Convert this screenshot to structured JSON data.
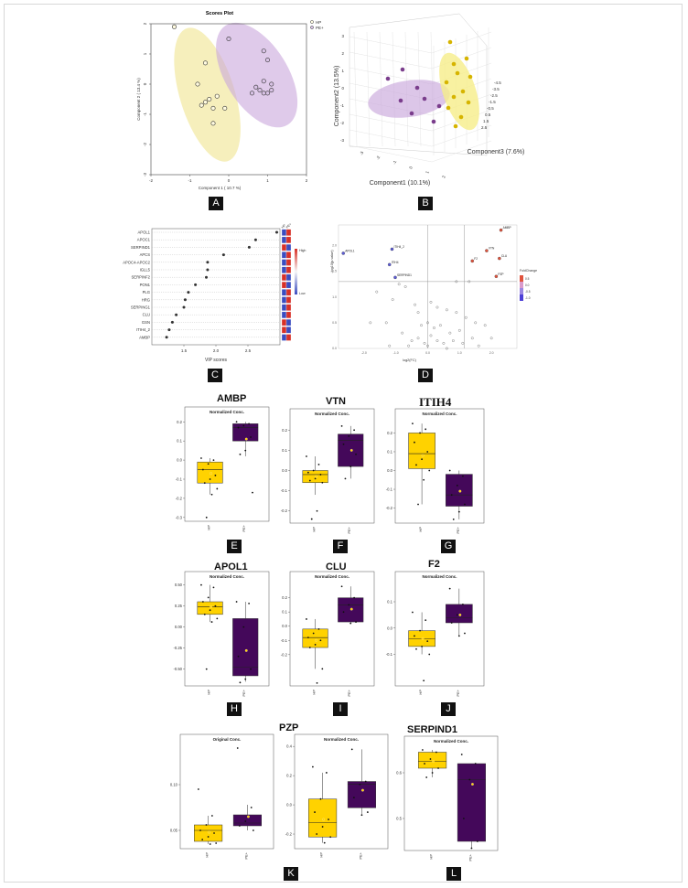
{
  "labels": {
    "A": "A",
    "B": "B",
    "C": "C",
    "D": "D",
    "E": "E",
    "F": "F",
    "G": "G",
    "H": "H",
    "I": "I",
    "J": "J",
    "K": "K",
    "L": "L"
  },
  "colors": {
    "hp": "#ffd200",
    "pe": "#44085a",
    "hp_ellipse": "#f3eaa6",
    "pe_ellipse": "#c9a7dc",
    "mean": "#ffd200"
  },
  "chart_data": [
    {
      "id": "A",
      "type": "scatter",
      "title": "Scores Plot",
      "xlabel": "Component 1 ( 10.7 %)",
      "ylabel": "Component 2 ( 13.4 %)",
      "xlim": [
        -2,
        2
      ],
      "ylim": [
        -3,
        2
      ],
      "xticks": [
        "-2",
        "-1",
        "0",
        "1",
        "2"
      ],
      "yticks": [
        "-3",
        "-2",
        "-1",
        "0",
        "1",
        "2"
      ],
      "legend": [
        "HP",
        "PE+"
      ],
      "legend_position": "top-right",
      "series": [
        {
          "name": "HP",
          "points": [
            [
              -1.4,
              1.9
            ],
            [
              -0.6,
              0.7
            ],
            [
              -0.8,
              0.0
            ],
            [
              -0.6,
              -0.6
            ],
            [
              -0.5,
              -0.5
            ],
            [
              -0.3,
              -0.4
            ],
            [
              -0.1,
              -0.8
            ],
            [
              -0.7,
              -0.7
            ],
            [
              -0.4,
              -0.8
            ],
            [
              -0.4,
              -1.3
            ]
          ]
        },
        {
          "name": "PE+",
          "points": [
            [
              0.0,
              1.5
            ],
            [
              0.9,
              1.1
            ],
            [
              1.0,
              0.8
            ],
            [
              0.9,
              0.1
            ],
            [
              1.1,
              0.0
            ],
            [
              0.7,
              -0.1
            ],
            [
              1.1,
              -0.2
            ],
            [
              0.8,
              -0.2
            ],
            [
              0.9,
              -0.3
            ],
            [
              1.0,
              -0.3
            ],
            [
              0.6,
              -0.3
            ]
          ]
        }
      ]
    },
    {
      "id": "B",
      "type": "scatter",
      "title": "",
      "xlabel": "Component1 (10.1%)",
      "ylabel": "Component2 (13.5%)",
      "zlabel": "Component3 (7.6%)",
      "xticks": [
        "-3",
        "-2",
        "-1",
        "0",
        "1",
        "2"
      ],
      "yticks": [
        "-3",
        "-2",
        "-1",
        "0",
        "1",
        "2",
        "3"
      ],
      "zticks": [
        "-4.5",
        "-3.5",
        "-2.5",
        "-1.5",
        "-0.5",
        "0.5",
        "1.5",
        "2.5"
      ],
      "series": [
        {
          "name": "HP",
          "points": [
            [
              1.4,
              2.7,
              -1.5
            ],
            [
              1.6,
              2.1,
              -1.0
            ],
            [
              2.0,
              2.2,
              -2.0
            ],
            [
              1.2,
              1.4,
              -0.6
            ],
            [
              1.5,
              0.5,
              -0.5
            ],
            [
              2.1,
              0.6,
              -1.2
            ],
            [
              1.7,
              -0.1,
              -0.3
            ],
            [
              2.2,
              0.1,
              -0.6
            ],
            [
              1.9,
              -0.5,
              0.1
            ],
            [
              2.5,
              -0.3,
              -0.8
            ],
            [
              1.6,
              -1.1,
              0.5
            ],
            [
              2.0,
              -0.8,
              0.2
            ]
          ]
        },
        {
          "name": "PE+",
          "points": [
            [
              -1.2,
              0.9,
              0.4
            ],
            [
              -0.9,
              0.3,
              0.1
            ],
            [
              -0.3,
              0.2,
              0.3
            ],
            [
              0.2,
              -0.2,
              0.0
            ],
            [
              -1.5,
              -0.7,
              0.8
            ],
            [
              -0.5,
              -0.9,
              0.6
            ],
            [
              0.5,
              -0.8,
              0.4
            ],
            [
              -0.1,
              0.6,
              -0.2
            ]
          ]
        }
      ]
    },
    {
      "id": "C",
      "type": "scatter",
      "title": "",
      "xlabel": "VIP scores",
      "ylabel": "",
      "xlim": [
        1.0,
        3.0
      ],
      "xticks": [
        "1.5",
        "2.0",
        "2.5"
      ],
      "categories": [
        "APOL1",
        "APOC1",
        "SERPIND1",
        "APCS",
        "APOC4-APOC2",
        "IGLL5",
        "SERPINF2",
        "PON1",
        "PLG",
        "HRG",
        "SERPING1",
        "CLU",
        "GSN",
        "ITIH4_2",
        "AMBP"
      ],
      "values": [
        2.95,
        2.62,
        2.52,
        2.12,
        1.87,
        1.87,
        1.85,
        1.68,
        1.57,
        1.52,
        1.5,
        1.38,
        1.32,
        1.27,
        1.23
      ],
      "heat_columns": [
        "HP",
        "PE+"
      ],
      "heat": [
        [
          "b",
          "r"
        ],
        [
          "b",
          "r"
        ],
        [
          "r",
          "b"
        ],
        [
          "b",
          "r"
        ],
        [
          "b",
          "r"
        ],
        [
          "b",
          "r"
        ],
        [
          "r",
          "b"
        ],
        [
          "r",
          "b"
        ],
        [
          "b",
          "r"
        ],
        [
          "b",
          "r"
        ],
        [
          "b",
          "r"
        ],
        [
          "b",
          "r"
        ],
        [
          "r",
          "b"
        ],
        [
          "r",
          "b"
        ],
        [
          "b",
          "r"
        ]
      ],
      "legend": {
        "title": "",
        "high": "High",
        "low": "Low"
      }
    },
    {
      "id": "D",
      "type": "scatter",
      "title": "",
      "xlabel": "log2(FC)",
      "ylabel": "-log10(p.value)",
      "xlim": [
        -2.8,
        2.8
      ],
      "ylim": [
        0.0,
        2.4
      ],
      "xticks": [
        "-2.0",
        "-1.0",
        "0.0",
        "1.0",
        "2.0"
      ],
      "yticks": [
        "0.0",
        "0.5",
        "1.0",
        "1.5",
        "2.0"
      ],
      "legend_title": "FoldChange",
      "legend_values": [
        "0.5",
        "0.0",
        "-0.5",
        "-1.0"
      ],
      "labeled": [
        {
          "label": "AMBP",
          "x": 2.3,
          "y": 2.3,
          "dir": "up"
        },
        {
          "label": "VTN",
          "x": 1.85,
          "y": 1.9,
          "dir": "up"
        },
        {
          "label": "CLU",
          "x": 2.25,
          "y": 1.75,
          "dir": "up"
        },
        {
          "label": "F2",
          "x": 1.4,
          "y": 1.7,
          "dir": "up"
        },
        {
          "label": "PZP",
          "x": 2.15,
          "y": 1.4,
          "dir": "up"
        },
        {
          "label": "APOL1",
          "x": -2.65,
          "y": 1.85,
          "dir": "down"
        },
        {
          "label": "ITIH4_2",
          "x": -1.12,
          "y": 1.93,
          "dir": "down"
        },
        {
          "label": "ITIH4",
          "x": -1.2,
          "y": 1.63,
          "dir": "down"
        },
        {
          "label": "SERPIND1",
          "x": -1.02,
          "y": 1.38,
          "dir": "down"
        }
      ],
      "other_points": [
        [
          -1.6,
          1.1
        ],
        [
          -0.7,
          1.2
        ],
        [
          -0.9,
          1.25
        ],
        [
          0.9,
          1.3
        ],
        [
          1.3,
          1.3
        ],
        [
          -1.1,
          0.95
        ],
        [
          -1.8,
          0.5
        ],
        [
          -1.3,
          0.5
        ],
        [
          -0.4,
          0.85
        ],
        [
          -0.3,
          0.7
        ],
        [
          0.1,
          0.9
        ],
        [
          0.3,
          0.8
        ],
        [
          0.6,
          0.75
        ],
        [
          0.9,
          0.7
        ],
        [
          1.2,
          0.6
        ],
        [
          1.5,
          0.5
        ],
        [
          -0.2,
          0.45
        ],
        [
          0.0,
          0.5
        ],
        [
          0.2,
          0.4
        ],
        [
          0.4,
          0.45
        ],
        [
          0.7,
          0.3
        ],
        [
          1.0,
          0.35
        ],
        [
          1.8,
          0.45
        ],
        [
          -0.8,
          0.3
        ],
        [
          -0.5,
          0.15
        ],
        [
          -0.3,
          0.2
        ],
        [
          -0.1,
          0.1
        ],
        [
          0.1,
          0.25
        ],
        [
          0.3,
          0.15
        ],
        [
          0.5,
          0.1
        ],
        [
          0.8,
          0.15
        ],
        [
          1.1,
          0.1
        ],
        [
          1.4,
          0.2
        ],
        [
          -1.2,
          0.05
        ],
        [
          -0.6,
          0.05
        ],
        [
          0.0,
          0.05
        ],
        [
          0.6,
          0.0
        ],
        [
          1.6,
          0.05
        ],
        [
          2.0,
          0.2
        ]
      ]
    },
    {
      "id": "E",
      "type": "box",
      "title": "AMBP",
      "subtitle": "Normalized Conc.",
      "categories": [
        "HP",
        "PE+"
      ],
      "yticks": [
        "-0.3",
        "-0.2",
        "-0.1",
        "0.0",
        "0.1",
        "0.2"
      ],
      "boxes": [
        {
          "min": -0.18,
          "q1": -0.12,
          "median": -0.05,
          "q3": -0.01,
          "max": 0.01,
          "mean": -0.07,
          "points": [
            0.01,
            0.0,
            -0.02,
            -0.05,
            -0.08,
            -0.1,
            -0.12,
            -0.15,
            -0.18,
            -0.3
          ]
        },
        {
          "min": 0.02,
          "q1": 0.1,
          "median": 0.17,
          "q3": 0.19,
          "max": 0.2,
          "mean": 0.11,
          "points": [
            0.2,
            0.19,
            0.18,
            0.17,
            0.12,
            0.05,
            0.03,
            -0.17
          ]
        }
      ]
    },
    {
      "id": "F",
      "type": "box",
      "title": "VTN",
      "subtitle": "Normalized Conc.",
      "categories": [
        "HP",
        "PE+"
      ],
      "yticks": [
        "-0.2",
        "-0.1",
        "0.0",
        "0.1",
        "0.2"
      ],
      "boxes": [
        {
          "min": -0.12,
          "q1": -0.06,
          "median": -0.02,
          "q3": 0.0,
          "max": 0.07,
          "mean": -0.03,
          "points": [
            0.07,
            0.03,
            0.0,
            -0.01,
            -0.02,
            -0.04,
            -0.05,
            -0.06,
            -0.2,
            -0.24
          ]
        },
        {
          "min": -0.04,
          "q1": 0.02,
          "median": 0.15,
          "q3": 0.18,
          "max": 0.22,
          "mean": 0.1,
          "points": [
            0.22,
            0.2,
            0.17,
            0.13,
            0.08,
            0.02,
            -0.04
          ]
        }
      ]
    },
    {
      "id": "G",
      "type": "box",
      "title": "ITIH4",
      "subtitle": "Normalized Conc.",
      "categories": [
        "HP",
        "PE+"
      ],
      "yticks": [
        "-0.2",
        "-0.1",
        "0.0",
        "0.1",
        "0.2"
      ],
      "boxes": [
        {
          "min": -0.18,
          "q1": 0.01,
          "median": 0.09,
          "q3": 0.2,
          "max": 0.25,
          "mean": 0.08,
          "points": [
            0.25,
            0.22,
            0.2,
            0.15,
            0.1,
            0.06,
            0.03,
            0.0,
            -0.05,
            -0.18
          ]
        },
        {
          "min": -0.26,
          "q1": -0.19,
          "median": -0.13,
          "q3": -0.02,
          "max": 0.0,
          "mean": -0.11,
          "points": [
            0.0,
            -0.03,
            -0.08,
            -0.13,
            -0.18,
            -0.22,
            -0.26
          ]
        }
      ]
    },
    {
      "id": "H",
      "type": "box",
      "title": "APOL1",
      "subtitle": "Normalized Conc.",
      "categories": [
        "HP",
        "PE+"
      ],
      "yticks": [
        "-0.50",
        "-0.25",
        "0.00",
        "0.25",
        "0.50"
      ],
      "boxes": [
        {
          "min": 0.06,
          "q1": 0.15,
          "median": 0.24,
          "q3": 0.3,
          "max": 0.5,
          "mean": 0.24,
          "points": [
            0.5,
            0.47,
            0.35,
            0.3,
            0.25,
            0.2,
            0.15,
            0.1,
            0.06,
            -0.5
          ]
        },
        {
          "min": -0.65,
          "q1": -0.58,
          "median": -0.48,
          "q3": 0.1,
          "max": 0.3,
          "mean": -0.28,
          "points": [
            0.3,
            0.28,
            0.0,
            -0.35,
            -0.5,
            -0.62,
            -0.66
          ]
        }
      ]
    },
    {
      "id": "I",
      "type": "box",
      "title": "CLU",
      "subtitle": "Normalized Conc.",
      "categories": [
        "HP",
        "PE+"
      ],
      "yticks": [
        "-0.2",
        "-0.1",
        "0.0",
        "0.1",
        "0.2"
      ],
      "boxes": [
        {
          "min": -0.3,
          "q1": -0.15,
          "median": -0.08,
          "q3": -0.02,
          "max": 0.05,
          "mean": -0.1,
          "points": [
            0.05,
            -0.02,
            -0.05,
            -0.08,
            -0.1,
            -0.13,
            -0.15,
            -0.3,
            -0.4
          ]
        },
        {
          "min": 0.02,
          "q1": 0.03,
          "median": 0.15,
          "q3": 0.2,
          "max": 0.28,
          "mean": 0.12,
          "points": [
            0.28,
            0.2,
            0.15,
            0.1,
            0.03,
            0.02
          ]
        }
      ]
    },
    {
      "id": "J",
      "type": "box",
      "title": "F2",
      "subtitle": "Normalized Conc.",
      "categories": [
        "HP",
        "PE+"
      ],
      "yticks": [
        "-0.1",
        "0.0",
        "0.1"
      ],
      "boxes": [
        {
          "min": -0.1,
          "q1": -0.07,
          "median": -0.04,
          "q3": -0.01,
          "max": 0.06,
          "mean": -0.04,
          "points": [
            0.06,
            0.03,
            -0.01,
            -0.03,
            -0.05,
            -0.07,
            -0.08,
            -0.1,
            -0.2
          ]
        },
        {
          "min": -0.03,
          "q1": 0.02,
          "median": 0.04,
          "q3": 0.09,
          "max": 0.15,
          "mean": 0.05,
          "points": [
            0.15,
            0.09,
            0.05,
            0.02,
            -0.02,
            -0.03
          ]
        }
      ]
    },
    {
      "id": "K",
      "type": "box",
      "title": "PZP",
      "subtitle": "Original Conc.",
      "categories": [
        "HP",
        "PE+"
      ],
      "yticks": [
        "0.05",
        "0.10"
      ],
      "boxes": [
        {
          "min": 0.035,
          "q1": 0.038,
          "median": 0.05,
          "q3": 0.056,
          "max": 0.066,
          "mean": 0.048,
          "points": [
            0.095,
            0.066,
            0.056,
            0.05,
            0.047,
            0.043,
            0.04,
            0.036,
            0.035
          ]
        },
        {
          "min": 0.05,
          "q1": 0.055,
          "median": 0.058,
          "q3": 0.067,
          "max": 0.078,
          "mean": 0.065,
          "points": [
            0.14,
            0.075,
            0.06,
            0.055,
            0.05
          ]
        }
      ]
    },
    {
      "id": "K2",
      "type": "box",
      "title": "",
      "subtitle": "Normalized Conc.",
      "categories": [
        "HP",
        "PE+"
      ],
      "yticks": [
        "-0.2",
        "0.0",
        "0.2",
        "0.4"
      ],
      "boxes": [
        {
          "min": -0.26,
          "q1": -0.22,
          "median": -0.12,
          "q3": 0.04,
          "max": 0.22,
          "mean": -0.1,
          "points": [
            0.26,
            0.22,
            0.04,
            -0.05,
            -0.1,
            -0.15,
            -0.2,
            -0.22,
            -0.26
          ]
        },
        {
          "min": -0.07,
          "q1": -0.02,
          "median": 0.14,
          "q3": 0.16,
          "max": 0.38,
          "mean": 0.1,
          "points": [
            0.38,
            0.16,
            0.14,
            0.05,
            -0.05,
            -0.07
          ]
        }
      ]
    },
    {
      "id": "L",
      "type": "box",
      "title": "SERPIND1",
      "subtitle": "Normalized Conc.",
      "categories": [
        "HP",
        "PE+"
      ],
      "yticks": [
        "0.5",
        "0.6"
      ],
      "boxes": [
        {
          "min": 0.59,
          "q1": 0.61,
          "median": 0.625,
          "q3": 0.645,
          "max": 0.65,
          "mean": 0.625,
          "points": [
            0.65,
            0.645,
            0.63,
            0.62,
            0.61,
            0.6,
            0.59
          ]
        },
        {
          "min": 0.435,
          "q1": 0.45,
          "median": 0.585,
          "q3": 0.62,
          "max": 0.62,
          "mean": 0.575,
          "points": [
            0.64,
            0.62,
            0.585,
            0.5,
            0.45,
            0.435
          ]
        }
      ]
    }
  ]
}
